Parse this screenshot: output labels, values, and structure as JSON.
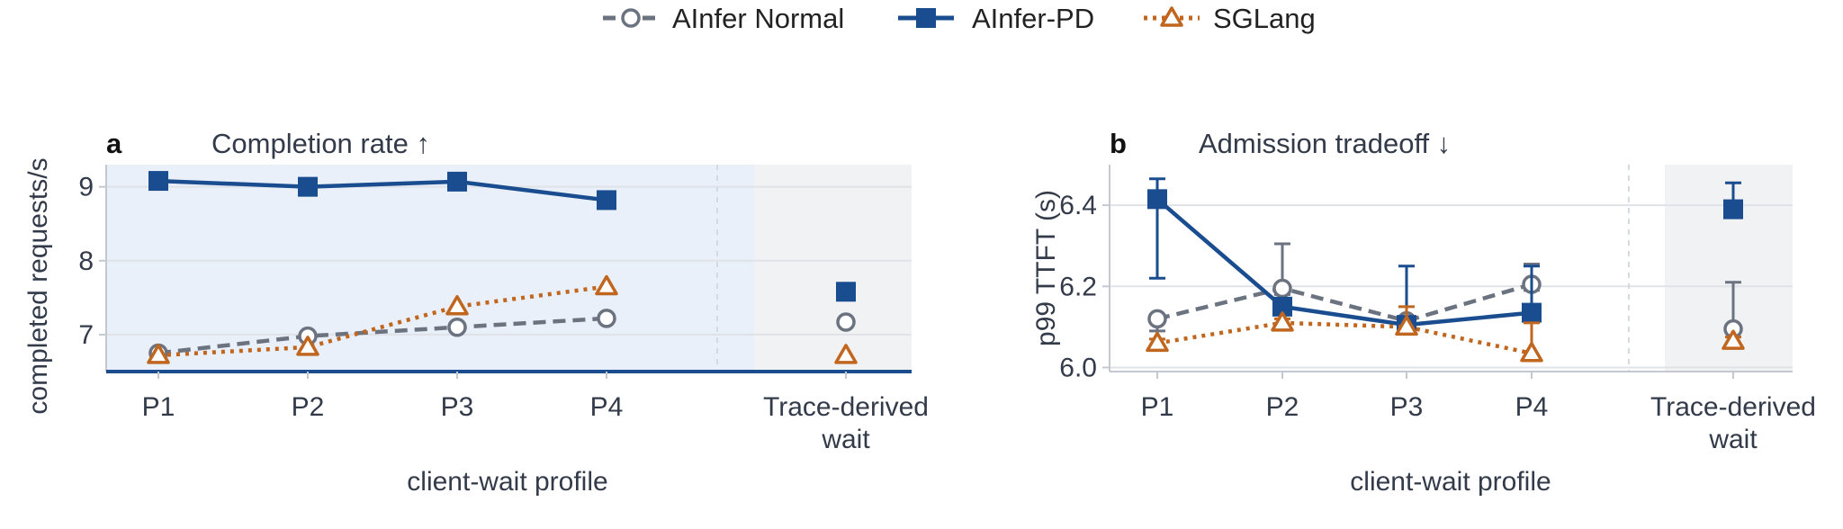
{
  "legend": {
    "items": [
      {
        "label": "AInfer Normal",
        "color": "#6b7280",
        "marker": "open-circle",
        "dash": "dashed"
      },
      {
        "label": "AInfer-PD",
        "color": "#1a4d8f",
        "marker": "filled-square",
        "dash": "solid"
      },
      {
        "label": "SGLang",
        "color": "#c0661f",
        "marker": "open-triangle",
        "dash": "dotted"
      }
    ]
  },
  "chart_data": [
    {
      "type": "line",
      "panel": "a",
      "title": "Completion rate ↑",
      "xlabel": "client-wait profile",
      "ylabel": "completed requests/s",
      "categories": [
        "P1",
        "P2",
        "P3",
        "P4",
        "Trace-derived\nwait"
      ],
      "ylim": [
        6.5,
        9.3
      ],
      "yticks": [
        7,
        8,
        9
      ],
      "grid": true,
      "series": [
        {
          "name": "AInfer Normal",
          "values": [
            6.75,
            6.98,
            7.1,
            7.22,
            7.17
          ]
        },
        {
          "name": "AInfer-PD",
          "values": [
            9.08,
            9.0,
            9.07,
            8.82,
            7.58
          ]
        },
        {
          "name": "SGLang",
          "values": [
            6.72,
            6.83,
            7.38,
            7.65,
            6.72
          ]
        }
      ],
      "connected_points": 4
    },
    {
      "type": "line",
      "panel": "b",
      "title": "Admission tradeoff ↓",
      "xlabel": "client-wait profile",
      "ylabel": "p99 TTFT (s)",
      "categories": [
        "P1",
        "P2",
        "P3",
        "P4",
        "Trace-derived\nwait"
      ],
      "ylim": [
        5.99,
        6.5
      ],
      "yticks": [
        6.0,
        6.2,
        6.4
      ],
      "grid": true,
      "series": [
        {
          "name": "AInfer Normal",
          "values": [
            6.12,
            6.195,
            6.115,
            6.205,
            6.095
          ],
          "err_low": [
            6.09,
            6.18,
            6.1,
            6.19,
            6.06
          ],
          "err_high": [
            6.13,
            6.305,
            6.12,
            6.255,
            6.21
          ]
        },
        {
          "name": "AInfer-PD",
          "values": [
            6.415,
            6.15,
            6.105,
            6.135,
            6.39
          ],
          "err_low": [
            6.22,
            6.14,
            6.09,
            6.12,
            6.37
          ],
          "err_high": [
            6.465,
            6.16,
            6.25,
            6.25,
            6.455
          ]
        },
        {
          "name": "SGLang",
          "values": [
            6.06,
            6.11,
            6.1,
            6.035,
            6.065
          ],
          "err_low": [
            6.05,
            6.1,
            6.09,
            6.02,
            6.055
          ],
          "err_high": [
            6.07,
            6.12,
            6.15,
            6.11,
            6.075
          ]
        }
      ],
      "connected_points": 4
    }
  ]
}
